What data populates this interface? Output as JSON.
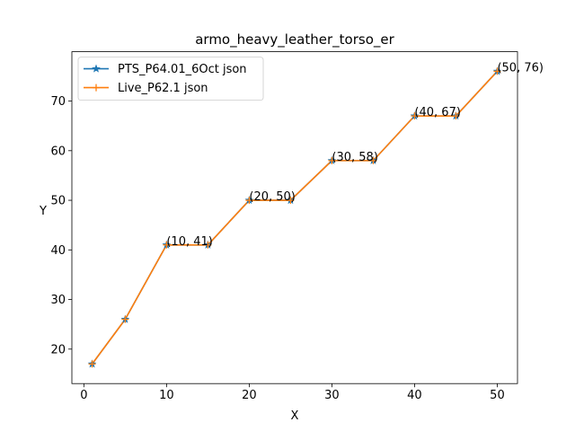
{
  "chart_data": {
    "type": "line",
    "title": "armo_heavy_leather_torso_er",
    "xlabel": "X",
    "ylabel": "Y",
    "xlim": [
      -1.45,
      52.45
    ],
    "ylim": [
      13.05,
      79.95
    ],
    "xticks": [
      0,
      10,
      20,
      30,
      40,
      50
    ],
    "yticks": [
      20,
      30,
      40,
      50,
      60,
      70
    ],
    "grid": false,
    "legend_position": "upper-left",
    "x": [
      1,
      5,
      10,
      15,
      20,
      25,
      30,
      35,
      40,
      45,
      50
    ],
    "series": [
      {
        "name": "PTS_P64.01_6Oct json",
        "values": [
          17,
          26,
          41,
          41,
          50,
          50,
          58,
          58,
          67,
          67,
          76
        ],
        "color": "#1f77b4",
        "marker": "star"
      },
      {
        "name": "Live_P62.1 json",
        "values": [
          17,
          26,
          41,
          41,
          50,
          50,
          58,
          58,
          67,
          67,
          76
        ],
        "color": "#ff7f0e",
        "marker": "plus"
      }
    ],
    "annotations": [
      {
        "x": 10,
        "y": 41,
        "text": "(10, 41)"
      },
      {
        "x": 20,
        "y": 50,
        "text": "(20, 50)"
      },
      {
        "x": 30,
        "y": 58,
        "text": "(30, 58)"
      },
      {
        "x": 40,
        "y": 67,
        "text": "(40, 67)"
      },
      {
        "x": 50,
        "y": 76,
        "text": "(50, 76)"
      }
    ]
  }
}
